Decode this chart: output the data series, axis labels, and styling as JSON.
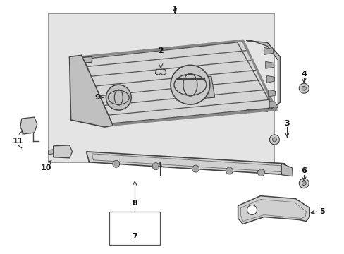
{
  "bg_color": "#ffffff",
  "box_bg": "#e0e0e0",
  "line_color": "#333333",
  "part_line": "#444444",
  "part_fill": "#cccccc",
  "part_fill2": "#b8b8b8",
  "figsize": [
    4.89,
    3.6
  ],
  "dpi": 100,
  "labels": [
    "1",
    "2",
    "3",
    "4",
    "5",
    "6",
    "7",
    "8",
    "9",
    "10",
    "11"
  ]
}
